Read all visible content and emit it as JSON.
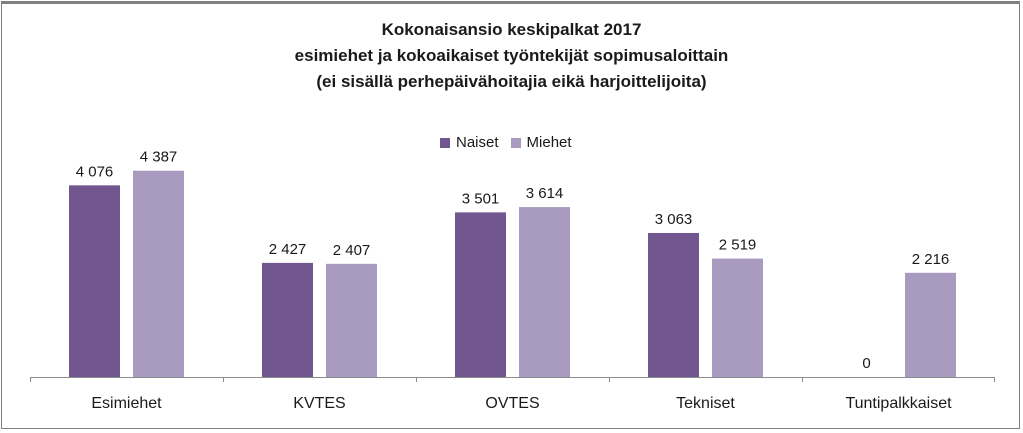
{
  "chart_data": {
    "type": "bar",
    "title_lines": [
      "Kokonaisansio keskipalkat 2017",
      "esimiehet ja kokoaikaiset työntekijät sopimusaloittain",
      "(ei sisällä perhepäivähoitajia eikä harjoittelijoita)"
    ],
    "categories": [
      "Esimiehet",
      "KVTES",
      "OVTES",
      "Tekniset",
      "Tuntipalkkaiset"
    ],
    "series": [
      {
        "name": "Naiset",
        "values": [
          4076,
          2427,
          3501,
          3063,
          0
        ],
        "labels": [
          "4 076",
          "2 427",
          "3 501",
          "3 063",
          "0"
        ],
        "color": "#725690"
      },
      {
        "name": "Miehet",
        "values": [
          4387,
          2407,
          3614,
          2519,
          2216
        ],
        "labels": [
          "4 387",
          "2 407",
          "3 614",
          "2 519",
          "2 216"
        ],
        "color": "#a99bc0"
      }
    ],
    "ylim": [
      0,
      5000
    ],
    "grid": false,
    "legend_position": "top-center",
    "axis_color": "#8c8c8c"
  }
}
